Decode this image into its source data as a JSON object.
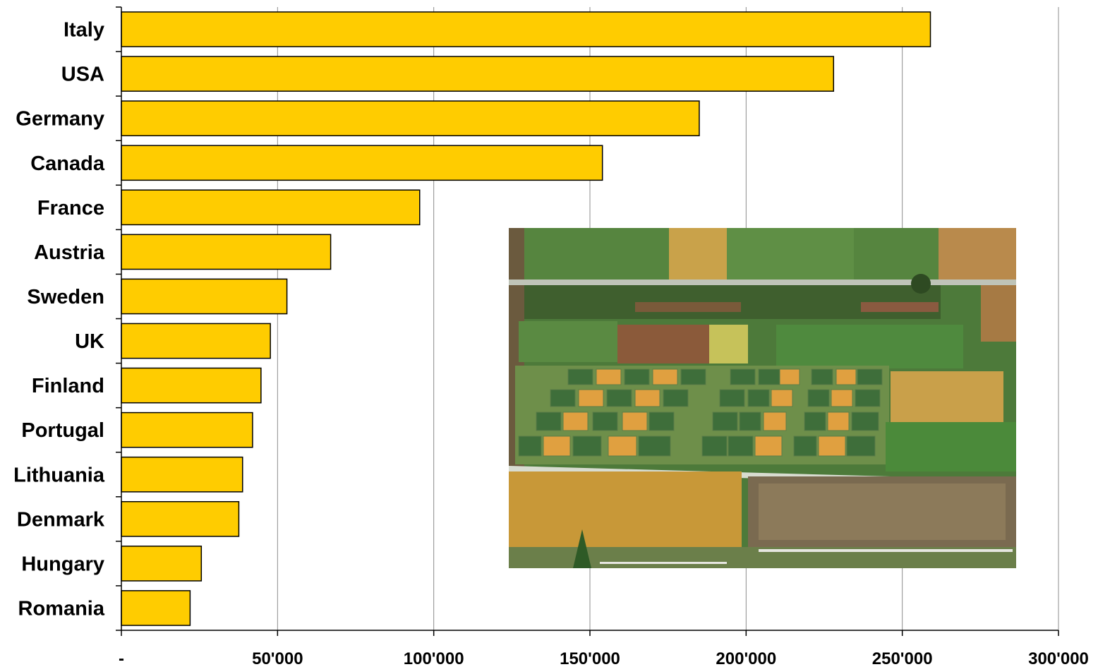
{
  "chart_data": {
    "type": "bar",
    "orientation": "horizontal",
    "categories": [
      "Italy",
      "USA",
      "Germany",
      "Canada",
      "France",
      "Austria",
      "Sweden",
      "UK",
      "Finland",
      "Portugal",
      "Lithuania",
      "Denmark",
      "Hungary",
      "Romania"
    ],
    "values": [
      259000,
      228000,
      185000,
      154000,
      95500,
      67000,
      53000,
      47700,
      44700,
      42000,
      38800,
      37600,
      25600,
      22000
    ],
    "xlim": [
      0,
      300000
    ],
    "xtick_values": [
      0,
      50000,
      100000,
      150000,
      200000,
      250000,
      300000
    ],
    "xtick_labels": [
      "-",
      "50'000",
      "100'000",
      "150'000",
      "200'000",
      "250'000",
      "300'000"
    ],
    "grid": "vertical",
    "bar_color": "#FFCC00",
    "title": "",
    "xlabel": "",
    "ylabel": "",
    "inset_photo": "aerial view of agricultural field trial plots"
  }
}
